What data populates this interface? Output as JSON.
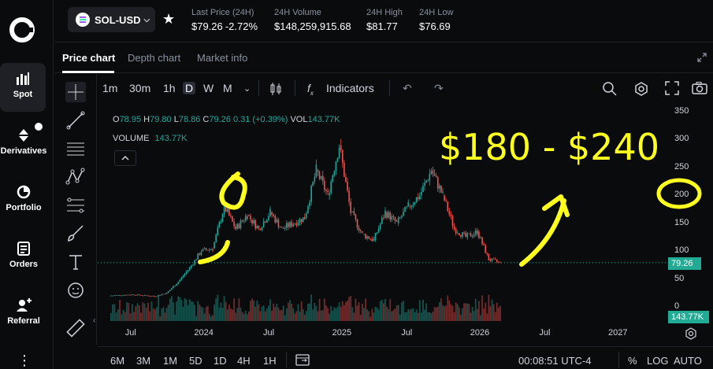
{
  "nav": {
    "items": [
      {
        "label": "Spot",
        "icon": "bar-chart-icon",
        "active": true
      },
      {
        "label": "Derivatives",
        "icon": "derivatives-icon"
      },
      {
        "label": "Portfolio",
        "icon": "pie-chart-icon"
      },
      {
        "label": "Orders",
        "icon": "orders-icon"
      },
      {
        "label": "Referral",
        "icon": "add-user-icon"
      }
    ],
    "more": "⋮"
  },
  "header": {
    "pair": "SOL-USD",
    "stats": [
      {
        "label": "Last Price (24H)",
        "value": "$79.26",
        "change": "-2.72%"
      },
      {
        "label": "24H Volume",
        "value": "$148,259,915.68"
      },
      {
        "label": "24H High",
        "value": "$81.77"
      },
      {
        "label": "24H Low",
        "value": "$76.69"
      }
    ]
  },
  "tabs": [
    "Price chart",
    "Depth chart",
    "Market info"
  ],
  "toolbar": {
    "intervals": [
      "1m",
      "30m",
      "1h",
      "D",
      "W",
      "M"
    ],
    "selected": "D",
    "indicators": "Indicators"
  },
  "legend": {
    "o_label": "O",
    "o": "78.95",
    "h_label": "H",
    "h": "79.80",
    "l_label": "L",
    "l": "78.86",
    "c_label": "C",
    "c": "79.26",
    "change": "0.31 (+0.39%)",
    "vol_label": "VOL",
    "vol": "143.77K",
    "volume_title": "VOLUME",
    "volume_value": "143.77K"
  },
  "annotation": "$180 - $240",
  "last_price_tag": "79.26",
  "last_volume_tag": "143.77K",
  "colors": {
    "up": "#26a69a",
    "down": "#ef5350",
    "annotation": "#ffff1f",
    "tag": "#22ab94"
  },
  "chart_data": {
    "type": "line",
    "title": "",
    "xlabel": "",
    "ylabel": "",
    "x_ticks": [
      "Jul",
      "2024",
      "Jul",
      "2025",
      "Jul",
      "2026",
      "Jul",
      "2027"
    ],
    "y_ticks": [
      350,
      300,
      250,
      200,
      150,
      100,
      50,
      0
    ],
    "ylim": [
      0,
      350
    ],
    "series": [
      {
        "x": [
          "2023-05",
          "2023-07",
          "2023-09",
          "2023-10",
          "2023-11",
          "2023-12",
          "2024-01",
          "2024-02",
          "2024-03",
          "2024-04",
          "2024-05",
          "2024-06",
          "2024-07",
          "2024-08",
          "2024-09",
          "2024-10",
          "2024-11",
          "2024-12",
          "2025-01",
          "2025-02",
          "2025-03",
          "2025-04",
          "2025-05",
          "2025-06",
          "2025-07",
          "2025-08",
          "2025-09",
          "2025-10",
          "2025-11",
          "2025-12",
          "2026-01",
          "2026-02",
          "2026-03"
        ],
        "values": [
          20,
          22,
          19,
          25,
          45,
          70,
          100,
          105,
          180,
          140,
          165,
          140,
          170,
          140,
          150,
          160,
          245,
          200,
          290,
          170,
          130,
          120,
          170,
          150,
          180,
          200,
          245,
          200,
          140,
          125,
          135,
          85,
          79
        ]
      }
    ],
    "grid": false,
    "last_price": 79.26
  },
  "bottom": {
    "ranges": [
      "6M",
      "3M",
      "1M",
      "5D",
      "1D",
      "4H",
      "1H"
    ],
    "clock": "00:08:51 UTC-4",
    "percent": "%",
    "log": "LOG",
    "auto": "AUTO"
  }
}
